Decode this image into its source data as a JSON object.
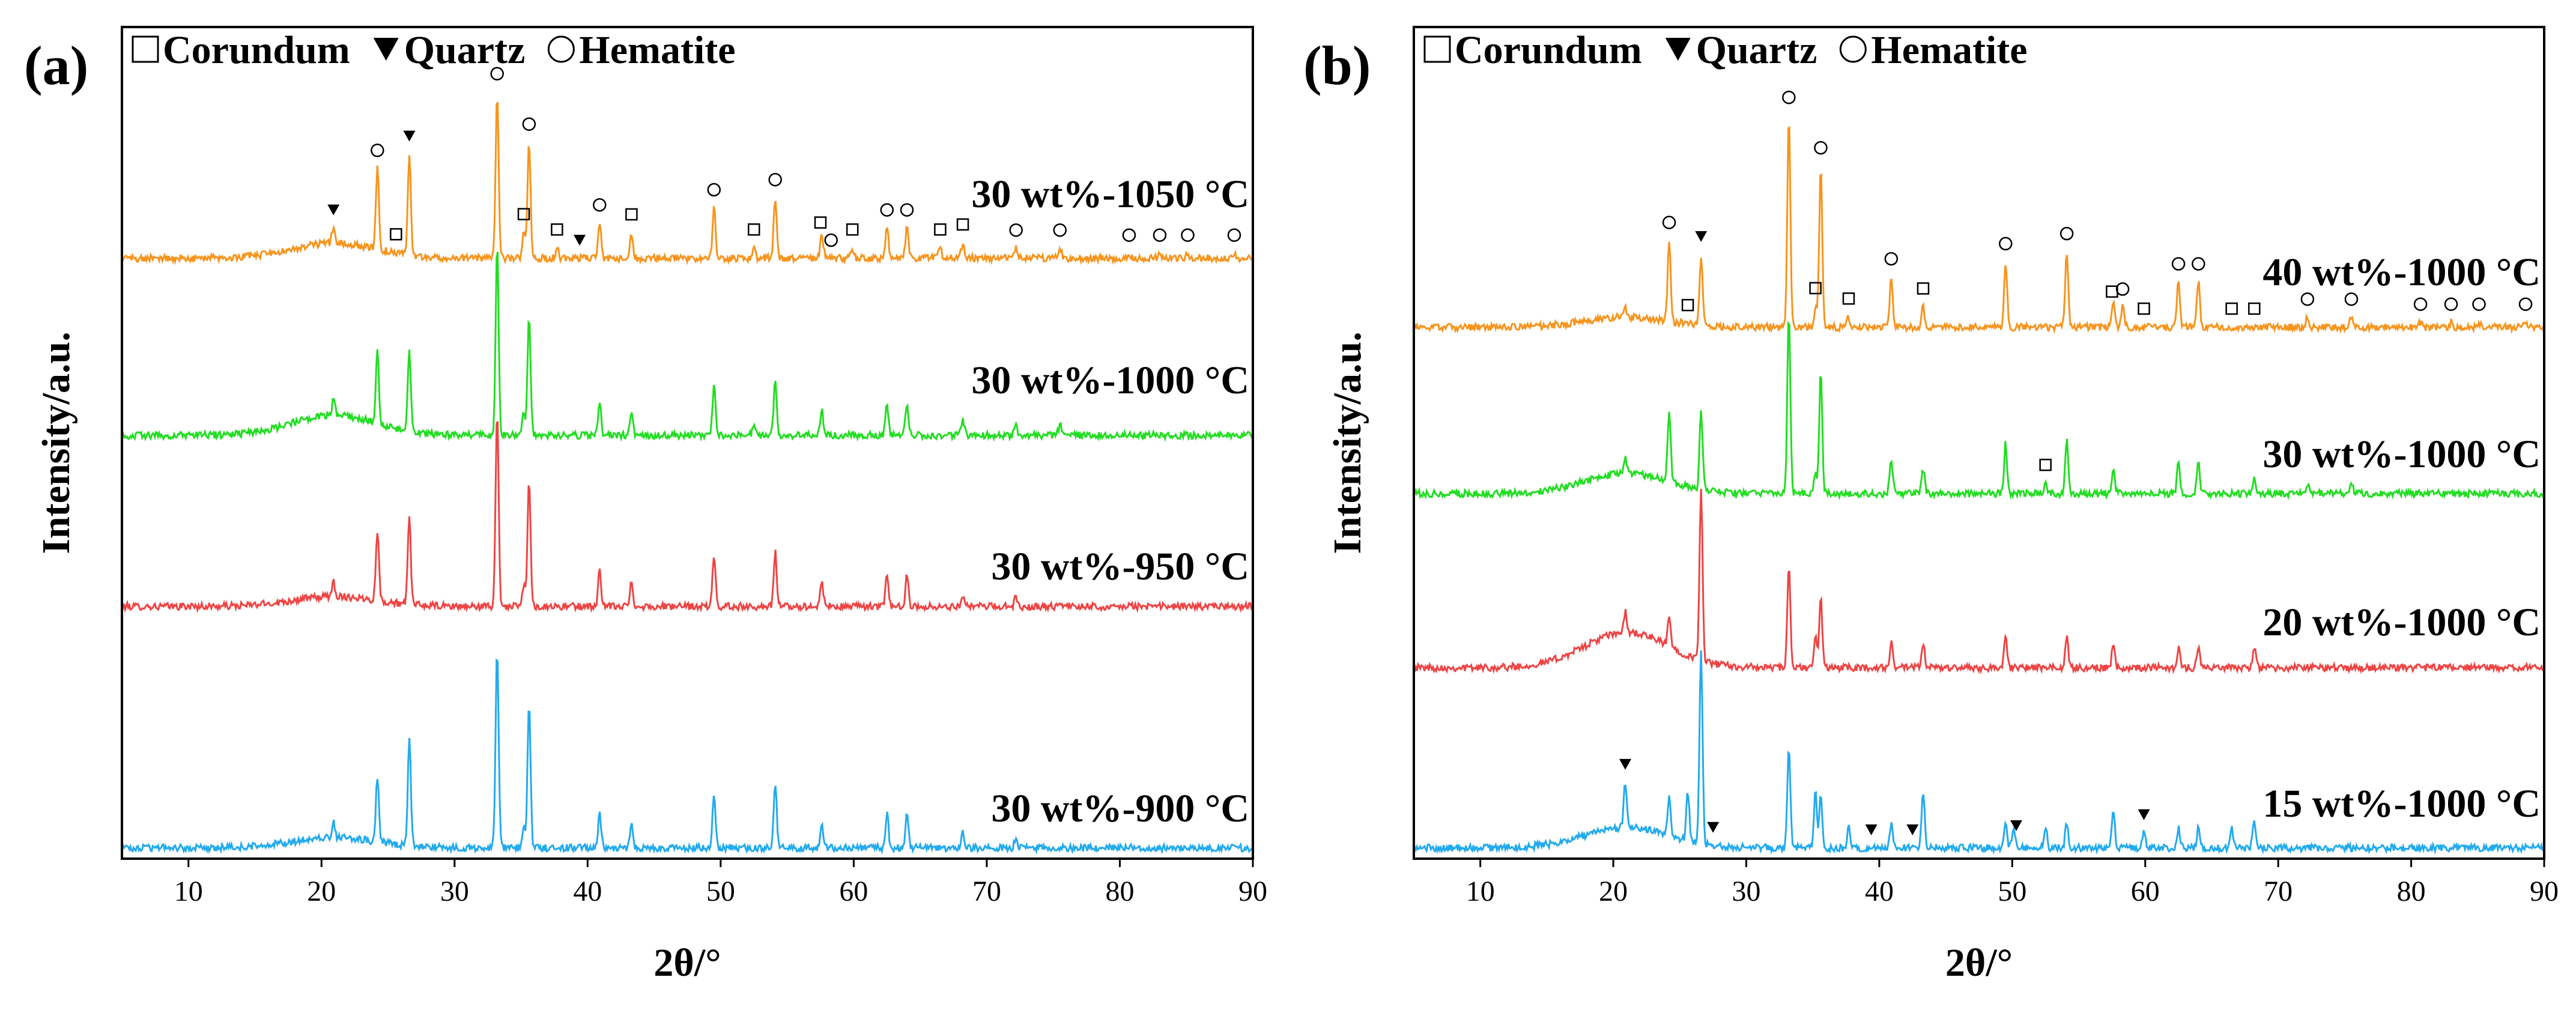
{
  "chart_data": [
    {
      "type": "line",
      "panel": "(a)",
      "xlabel": "2θ/°",
      "ylabel": "Intensity/a.u.",
      "xlim": [
        5,
        90
      ],
      "xticks": [
        10,
        20,
        30,
        40,
        50,
        60,
        70,
        80,
        90
      ],
      "y_ticks_shown": false,
      "grid": false,
      "legend": [
        {
          "symbol": "open-square",
          "label": "Corundum"
        },
        {
          "symbol": "filled-triangle",
          "label": "Quartz"
        },
        {
          "symbol": "open-circle",
          "label": "Hematite"
        }
      ],
      "legend_placement": "top-left",
      "series": [
        {
          "label": "30 wt%-1050 °C",
          "color": "#f7941d",
          "baseline": 0.06,
          "hump": 0.03,
          "peaks": [
            [
              20.9,
              0.03
            ],
            [
              24.2,
              0.16
            ],
            [
              26.6,
              0.2
            ],
            [
              33.2,
              0.33
            ],
            [
              35.6,
              0.23
            ],
            [
              40.9,
              0.07
            ],
            [
              43.3,
              0.05
            ],
            [
              49.5,
              0.1
            ],
            [
              54.1,
              0.12
            ],
            [
              57.6,
              0.05
            ],
            [
              62.5,
              0.06
            ],
            [
              64.0,
              0.06
            ],
            [
              35.2,
              0.05
            ],
            [
              37.7,
              0.02
            ],
            [
              52.5,
              0.02
            ],
            [
              59.9,
              0.02
            ],
            [
              66.5,
              0.02
            ],
            [
              68.2,
              0.03
            ],
            [
              72.2,
              0.02
            ],
            [
              75.5,
              0.02
            ],
            [
              80.7,
              0.01
            ],
            [
              83.0,
              0.01
            ],
            [
              85.1,
              0.01
            ],
            [
              88.6,
              0.01
            ]
          ],
          "markers": {
            "quartz": [
              20.9,
              26.6,
              39.4
            ],
            "hematite": [
              24.2,
              33.2,
              35.6,
              40.9,
              49.5,
              54.1,
              58.3,
              62.5,
              64.0,
              72.2,
              75.5,
              80.7,
              83.0,
              85.1,
              88.6
            ],
            "corundum": [
              25.6,
              35.2,
              37.7,
              43.3,
              52.5,
              57.5,
              59.9,
              66.5,
              68.2
            ]
          }
        },
        {
          "label": "30 wt%-1000 °C",
          "color": "#22dd22",
          "baseline": 0.06,
          "hump": 0.04,
          "peaks": [
            [
              20.9,
              0.03
            ],
            [
              24.2,
              0.14
            ],
            [
              26.6,
              0.16
            ],
            [
              33.2,
              0.38
            ],
            [
              35.6,
              0.24
            ],
            [
              40.9,
              0.07
            ],
            [
              43.3,
              0.05
            ],
            [
              49.5,
              0.1
            ],
            [
              54.1,
              0.11
            ],
            [
              57.6,
              0.05
            ],
            [
              62.5,
              0.06
            ],
            [
              64.0,
              0.06
            ],
            [
              35.2,
              0.04
            ],
            [
              52.5,
              0.02
            ],
            [
              68.2,
              0.03
            ],
            [
              72.2,
              0.02
            ],
            [
              75.5,
              0.02
            ]
          ]
        },
        {
          "label": "30 wt%-950 °C",
          "color": "#ee4444",
          "baseline": 0.06,
          "hump": 0.02,
          "peaks": [
            [
              20.9,
              0.03
            ],
            [
              24.2,
              0.14
            ],
            [
              26.6,
              0.17
            ],
            [
              33.2,
              0.39
            ],
            [
              35.6,
              0.25
            ],
            [
              40.9,
              0.07
            ],
            [
              43.3,
              0.05
            ],
            [
              49.5,
              0.1
            ],
            [
              54.1,
              0.11
            ],
            [
              57.6,
              0.05
            ],
            [
              62.5,
              0.06
            ],
            [
              64.0,
              0.06
            ],
            [
              35.2,
              0.04
            ],
            [
              68.2,
              0.02
            ],
            [
              72.2,
              0.02
            ]
          ]
        },
        {
          "label": "30 wt%-900 °C",
          "color": "#22aaee",
          "baseline": 0.06,
          "hump": 0.02,
          "peaks": [
            [
              20.9,
              0.03
            ],
            [
              24.2,
              0.13
            ],
            [
              26.6,
              0.22
            ],
            [
              33.2,
              0.4
            ],
            [
              35.6,
              0.29
            ],
            [
              40.9,
              0.07
            ],
            [
              43.3,
              0.05
            ],
            [
              49.5,
              0.11
            ],
            [
              54.1,
              0.13
            ],
            [
              57.6,
              0.05
            ],
            [
              62.5,
              0.07
            ],
            [
              64.0,
              0.07
            ],
            [
              35.2,
              0.04
            ],
            [
              68.2,
              0.03
            ],
            [
              72.2,
              0.02
            ]
          ]
        }
      ]
    },
    {
      "type": "line",
      "panel": "(b)",
      "xlabel": "2θ/°",
      "ylabel": "Intensity/a.u.",
      "xlim": [
        5,
        90
      ],
      "xticks": [
        10,
        20,
        30,
        40,
        50,
        60,
        70,
        80,
        90
      ],
      "y_ticks_shown": false,
      "grid": false,
      "legend": [
        {
          "symbol": "open-square",
          "label": "Corundum"
        },
        {
          "symbol": "filled-triangle",
          "label": "Quartz"
        },
        {
          "symbol": "open-circle",
          "label": "Hematite"
        }
      ],
      "legend_placement": "top-left",
      "series": [
        {
          "label": "40 wt%-1000 °C",
          "color": "#f7941d",
          "baseline": 0.06,
          "hump": 0.02,
          "peaks": [
            [
              20.9,
              0.02
            ],
            [
              24.2,
              0.16
            ],
            [
              26.6,
              0.14
            ],
            [
              33.2,
              0.42
            ],
            [
              35.6,
              0.32
            ],
            [
              40.9,
              0.1
            ],
            [
              43.3,
              0.04
            ],
            [
              49.5,
              0.13
            ],
            [
              54.1,
              0.15
            ],
            [
              57.6,
              0.05
            ],
            [
              58.3,
              0.04
            ],
            [
              62.5,
              0.09
            ],
            [
              64.0,
              0.09
            ],
            [
              35.2,
              0.04
            ],
            [
              37.7,
              0.02
            ],
            [
              72.2,
              0.02
            ],
            [
              75.5,
              0.02
            ],
            [
              80.7,
              0.01
            ],
            [
              83.0,
              0.01
            ],
            [
              85.1,
              0.01
            ],
            [
              88.6,
              0.01
            ]
          ],
          "markers": {
            "quartz": [
              26.6
            ],
            "hematite": [
              24.2,
              33.2,
              35.6,
              40.9,
              49.5,
              54.1,
              58.3,
              62.5,
              64.0,
              72.2,
              75.5,
              80.7,
              83.0,
              85.1,
              88.6
            ],
            "corundum": [
              25.6,
              35.2,
              37.7,
              43.3,
              57.5,
              59.9,
              66.5,
              68.2
            ]
          }
        },
        {
          "label": "30 wt%-1000 °C",
          "color": "#22dd22",
          "baseline": 0.06,
          "hump": 0.04,
          "peaks": [
            [
              20.9,
              0.03
            ],
            [
              24.2,
              0.14
            ],
            [
              26.6,
              0.16
            ],
            [
              33.2,
              0.36
            ],
            [
              35.6,
              0.24
            ],
            [
              40.9,
              0.07
            ],
            [
              43.3,
              0.05
            ],
            [
              49.5,
              0.1
            ],
            [
              54.1,
              0.11
            ],
            [
              57.6,
              0.05
            ],
            [
              62.5,
              0.06
            ],
            [
              64.0,
              0.06
            ],
            [
              35.2,
              0.04
            ],
            [
              52.5,
              0.02
            ],
            [
              68.2,
              0.03
            ],
            [
              72.2,
              0.02
            ],
            [
              75.5,
              0.02
            ]
          ],
          "markers": {
            "corundum": [
              52.5
            ]
          }
        },
        {
          "label": "20 wt%-1000 °C",
          "color": "#ee4444",
          "baseline": 0.06,
          "hump": 0.07,
          "peaks": [
            [
              20.9,
              0.04
            ],
            [
              24.2,
              0.06
            ],
            [
              26.6,
              0.34
            ],
            [
              33.2,
              0.2
            ],
            [
              35.6,
              0.14
            ],
            [
              40.9,
              0.05
            ],
            [
              43.3,
              0.05
            ],
            [
              49.5,
              0.06
            ],
            [
              54.1,
              0.06
            ],
            [
              57.6,
              0.05
            ],
            [
              62.5,
              0.04
            ],
            [
              64.0,
              0.04
            ],
            [
              35.2,
              0.06
            ],
            [
              68.2,
              0.04
            ]
          ]
        },
        {
          "label": "15 wt%-1000 °C",
          "color": "#22aaee",
          "baseline": 0.06,
          "hump": 0.04,
          "peaks": [
            [
              20.9,
              0.09
            ],
            [
              24.2,
              0.08
            ],
            [
              25.6,
              0.1
            ],
            [
              26.6,
              0.38
            ],
            [
              33.2,
              0.2
            ],
            [
              35.2,
              0.11
            ],
            [
              35.6,
              0.1
            ],
            [
              37.7,
              0.04
            ],
            [
              40.9,
              0.05
            ],
            [
              43.3,
              0.11
            ],
            [
              49.5,
              0.05
            ],
            [
              50.1,
              0.04
            ],
            [
              52.5,
              0.04
            ],
            [
              54.1,
              0.05
            ],
            [
              57.6,
              0.08
            ],
            [
              59.9,
              0.03
            ],
            [
              62.5,
              0.04
            ],
            [
              64.0,
              0.04
            ],
            [
              66.5,
              0.04
            ],
            [
              68.2,
              0.05
            ]
          ],
          "markers": {
            "quartz": [
              20.9,
              27.5,
              39.4,
              42.5,
              50.3,
              59.9
            ]
          }
        }
      ]
    }
  ]
}
